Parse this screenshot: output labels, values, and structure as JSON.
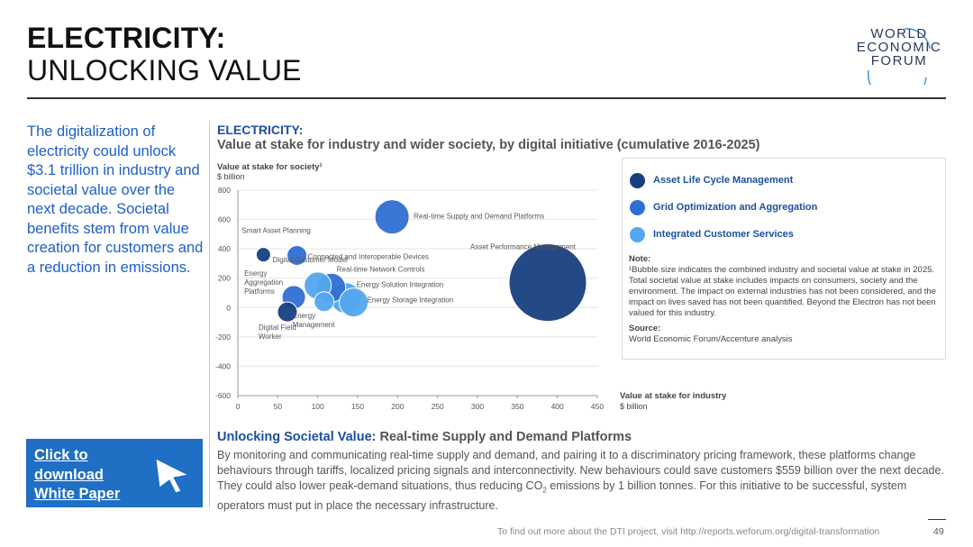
{
  "header": {
    "title_line1": "ELECTRICITY:",
    "title_line2": "UNLOCKING VALUE",
    "logo_lines": [
      "WORLD",
      "ECONOMIC",
      "FORUM"
    ]
  },
  "intro_text": "The digitalization of electricity could unlock $3.1 trillion in industry and societal value over the next decade. Societal benefits stem from value creation for customers and a reduction in emissions.",
  "cta": {
    "lines": [
      "Click to",
      "download",
      "White Paper"
    ]
  },
  "chart_heading": "ELECTRICITY:",
  "chart_data": {
    "type": "scatter",
    "title": "Value at stake for industry and wider society, by digital initiative (cumulative 2016-2025)",
    "ylabel": "Value at stake for society¹",
    "yunit": "$ billion",
    "xlabel": "Value at stake for industry",
    "xunit": "$ billion",
    "xlim": [
      0,
      450
    ],
    "ylim": [
      -600,
      800
    ],
    "xticks": [
      "0",
      "50",
      "100",
      "150",
      "200",
      "250",
      "300",
      "350",
      "400",
      "450"
    ],
    "yticks": [
      "800",
      "600",
      "400",
      "200",
      "0",
      "-200",
      "-400",
      "-600"
    ],
    "grid": true,
    "bubble_size_note": "combined value",
    "series": [
      {
        "name": "Asset Life Cycle Management",
        "color": "#173f7f",
        "points": [
          {
            "label": "Smart Asset Planning",
            "x": 32,
            "y": 360,
            "r": 8
          },
          {
            "label": "Digital Field Worker",
            "x": 62,
            "y": -30,
            "r": 11
          },
          {
            "label": "Asset Performance Management",
            "x": 388,
            "y": 170,
            "r": 43
          }
        ]
      },
      {
        "name": "Grid Optimization and Aggregation",
        "color": "#2f6fd3",
        "points": [
          {
            "label": "Connected and Interoperable Devices",
            "x": 74,
            "y": 355,
            "r": 11
          },
          {
            "label": "Real-time Supply and Demand Platforms",
            "x": 193,
            "y": 618,
            "r": 19
          },
          {
            "label": "Real-time Network Controls",
            "x": 117,
            "y": 135,
            "r": 16
          },
          {
            "label": "Energy Aggregation Platforms",
            "x": 70,
            "y": 70,
            "r": 13
          }
        ]
      },
      {
        "name": "Integrated Customer Services",
        "color": "#53a7ee",
        "points": [
          {
            "label": "Digital Customer Model",
            "x": 100,
            "y": 150,
            "r": 15
          },
          {
            "label": "Energy Solution Integration",
            "x": 135,
            "y": 65,
            "r": 17
          },
          {
            "label": "Energy Storage Integration",
            "x": 145,
            "y": 35,
            "r": 16
          },
          {
            "label": "Energy Management",
            "x": 108,
            "y": 40,
            "r": 11
          }
        ]
      }
    ]
  },
  "legend": {
    "note_heading": "Note:",
    "note_text": "¹Bubble size indicates the combined industry and societal value at stake in 2025. Total societal value at stake includes impacts on consumers, society and the environment. The impact on external industries has not been considered, and the impact on lives saved has not been quantified. Beyond the Electron has not been valued for this industry.",
    "source_heading": "Source:",
    "source_text": "World Economic Forum/Accenture analysis"
  },
  "section": {
    "heading_highlight": "Unlocking Societal Value:",
    "heading_rest": " Real-time Supply and Demand Platforms",
    "body_part1": "By monitoring and communicating real-time supply and demand, and pairing it to a discriminatory pricing framework, these platforms change behaviours through tariffs, localized pricing signals and interconnectivity. New behaviours could save customers $559 billion over the next decade. They could also lower peak-demand situations, thus reducing CO",
    "body_sub": "2",
    "body_part2": " emissions by 1 billion tonnes. For this initiative to be successful, system operators must put in place the necessary infrastructure."
  },
  "footer": {
    "text": "To find out more about the DTI project, visit http://reports.weforum.org/digital-transformation",
    "page_number": "49"
  }
}
